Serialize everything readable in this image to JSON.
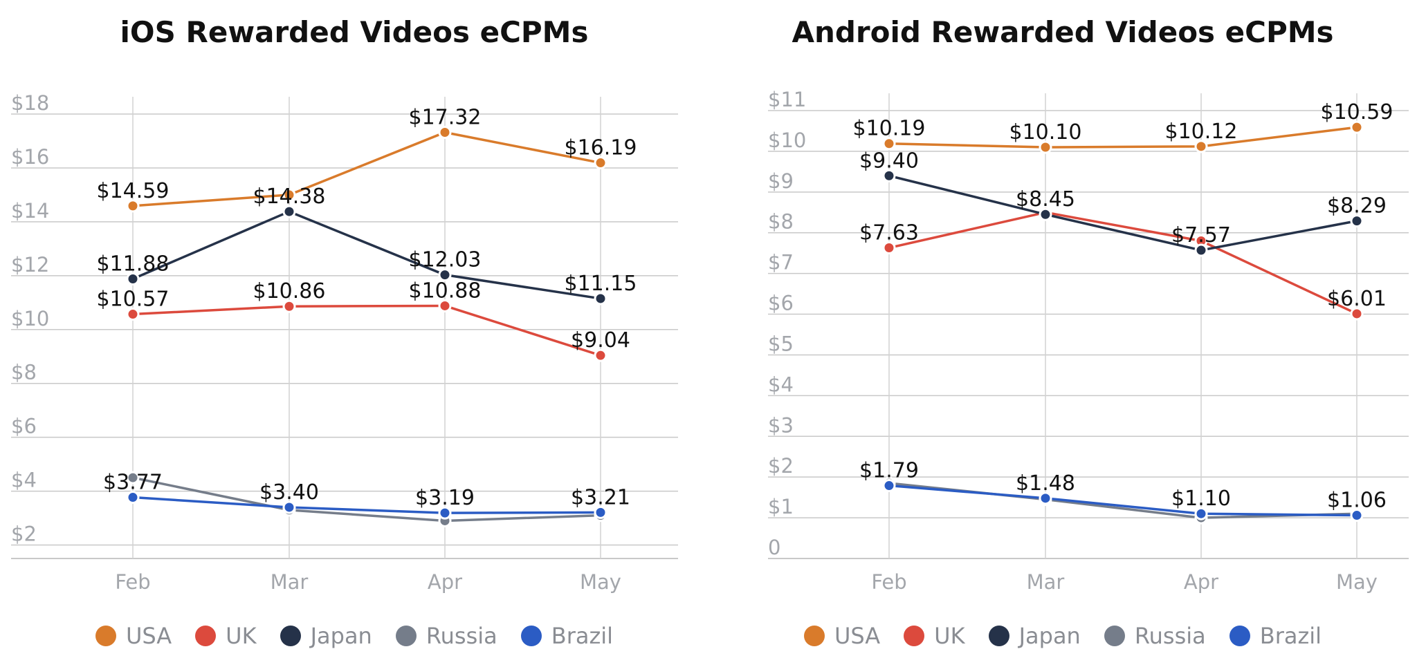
{
  "colors": {
    "USA": "#d97b2b",
    "UK": "#dc4a3d",
    "Japan": "#253249",
    "Russia": "#757d8a",
    "Brazil": "#2b5cc4"
  },
  "chart_data": [
    {
      "type": "line",
      "title": "iOS Rewarded Videos eCPMs",
      "categories": [
        "Feb",
        "Mar",
        "Apr",
        "May"
      ],
      "ylim": [
        1.5,
        18
      ],
      "yticks": [
        2,
        4,
        6,
        8,
        10,
        12,
        14,
        16,
        18
      ],
      "ytick_labels": [
        "$2",
        "$4",
        "$6",
        "$8",
        "$10",
        "$12",
        "$14",
        "$16",
        "$18"
      ],
      "grid": true,
      "legend_position": "bottom-center",
      "series": [
        {
          "name": "USA",
          "values": [
            14.59,
            15.0,
            17.32,
            16.19
          ],
          "labels": [
            "$14.59",
            "",
            "$17.32",
            "$16.19"
          ]
        },
        {
          "name": "UK",
          "values": [
            10.57,
            10.86,
            10.88,
            9.04
          ],
          "labels": [
            "$10.57",
            "$10.86",
            "$10.88",
            "$9.04"
          ]
        },
        {
          "name": "Japan",
          "values": [
            11.88,
            14.38,
            12.03,
            11.15
          ],
          "labels": [
            "$11.88",
            "$14.38",
            "$12.03",
            "$11.15"
          ]
        },
        {
          "name": "Russia",
          "values": [
            4.5,
            3.3,
            2.9,
            3.1
          ],
          "labels": [
            "",
            "",
            "",
            ""
          ]
        },
        {
          "name": "Brazil",
          "values": [
            3.77,
            3.4,
            3.19,
            3.21
          ],
          "labels": [
            "$3.77",
            "$3.40",
            "$3.19",
            "$3.21"
          ]
        }
      ]
    },
    {
      "type": "line",
      "title": "Android Rewarded Videos eCPMs",
      "categories": [
        "Feb",
        "Mar",
        "Apr",
        "May"
      ],
      "ylim": [
        0,
        11
      ],
      "yticks": [
        0,
        1,
        2,
        3,
        4,
        5,
        6,
        7,
        8,
        9,
        10,
        11
      ],
      "ytick_labels": [
        "0",
        "$1",
        "$2",
        "$3",
        "$4",
        "$5",
        "$6",
        "$7",
        "$8",
        "$9",
        "$10",
        "$11"
      ],
      "grid": true,
      "legend_position": "bottom-center",
      "series": [
        {
          "name": "USA",
          "values": [
            10.19,
            10.1,
            10.12,
            10.59
          ],
          "labels": [
            "$10.19",
            "$10.10",
            "$10.12",
            "$10.59"
          ]
        },
        {
          "name": "UK",
          "values": [
            7.63,
            8.5,
            7.8,
            6.01
          ],
          "labels": [
            "$7.63",
            "",
            "",
            "$6.01"
          ]
        },
        {
          "name": "Japan",
          "values": [
            9.4,
            8.45,
            7.57,
            8.29
          ],
          "labels": [
            "$9.40",
            "$8.45",
            "$7.57",
            "$8.29"
          ]
        },
        {
          "name": "Russia",
          "values": [
            1.85,
            1.45,
            1.0,
            1.1
          ],
          "labels": [
            "",
            "",
            "",
            ""
          ]
        },
        {
          "name": "Brazil",
          "values": [
            1.79,
            1.48,
            1.1,
            1.06
          ],
          "labels": [
            "$1.79",
            "$1.48",
            "$1.10",
            "$1.06"
          ]
        }
      ]
    }
  ]
}
